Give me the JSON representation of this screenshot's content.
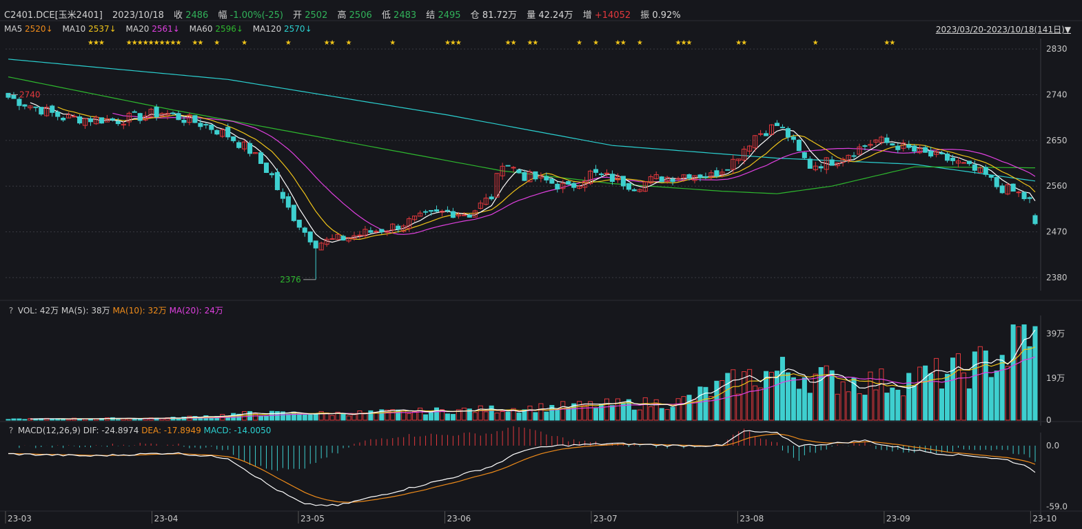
{
  "header": {
    "symbol": "C2401.DCE[玉米2401]",
    "date": "2023/10/18",
    "close_label": "收",
    "close": "2486",
    "change_label": "幅",
    "change": "-1.00%(-25)",
    "open_label": "开",
    "open": "2502",
    "high_label": "高",
    "high": "2506",
    "low_label": "低",
    "low": "2483",
    "settle_label": "结",
    "settle": "2495",
    "oi_label": "仓",
    "oi": "81.72万",
    "vol_label": "量",
    "vol": "42.24万",
    "inc_label": "增",
    "inc": "+14052",
    "amp_label": "振",
    "amp": "0.92%"
  },
  "ma_legend": {
    "ma5_label": "MA5",
    "ma5": "2520↓",
    "ma10_label": "MA10",
    "ma10": "2537↓",
    "ma20_label": "MA20",
    "ma20": "2561↓",
    "ma60_label": "MA60",
    "ma60": "2596↓",
    "ma120_label": "MA120",
    "ma120": "2570↓",
    "range": "2023/03/20-2023/10/18(141日)",
    "range_arrow": "▼"
  },
  "vol_legend": {
    "q": "?",
    "vol": "VOL: 42万",
    "ma5": "MA(5): 38万",
    "ma10": "MA(10): 32万",
    "ma20": "MA(20): 24万"
  },
  "macd_legend": {
    "q": "?",
    "name": "MACD(12,26,9)",
    "dif": "DIF: -24.8974",
    "dea": "DEA: -17.8949",
    "macd": "MACD: -14.0050"
  },
  "colors": {
    "up": "#e3383d",
    "down": "#3ecfcf",
    "ma5": "#ffffff",
    "ma10": "#f0c419",
    "ma20": "#e040e0",
    "ma60": "#2eb82e",
    "ma120": "#2bd0d0",
    "dea": "#f08c1a"
  },
  "chart_data": {
    "type": "candlestick",
    "price_axis": {
      "ticks": [
        "2830",
        "2740",
        "2650",
        "2560",
        "2470",
        "2380"
      ],
      "ylim": [
        2365,
        2845
      ]
    },
    "volume_axis": {
      "ticks": [
        "39万",
        "19万",
        "0"
      ]
    },
    "macd_axis": {
      "ticks": [
        "0.0",
        "-59.0"
      ]
    },
    "x_ticks": [
      "23-03",
      "23-04",
      "23-05",
      "23-06",
      "23-07",
      "23-08",
      "23-09",
      "23-10"
    ],
    "annotations": {
      "high": "2740",
      "low": "2376"
    },
    "last_bar": {
      "date": "2023/10/18",
      "open": 2502,
      "high": 2506,
      "low": 2483,
      "close": 2486
    },
    "price_anchors": [
      [
        0,
        2735
      ],
      [
        10,
        2695
      ],
      [
        20,
        2690
      ],
      [
        28,
        2705
      ],
      [
        36,
        2680
      ],
      [
        40,
        2660
      ],
      [
        44,
        2630
      ],
      [
        48,
        2580
      ],
      [
        50,
        2530
      ],
      [
        52,
        2500
      ],
      [
        54,
        2470
      ],
      [
        56,
        2448
      ],
      [
        60,
        2455
      ],
      [
        66,
        2470
      ],
      [
        70,
        2480
      ],
      [
        76,
        2500
      ],
      [
        80,
        2510
      ],
      [
        84,
        2505
      ],
      [
        88,
        2540
      ],
      [
        90,
        2610
      ],
      [
        94,
        2580
      ],
      [
        98,
        2570
      ],
      [
        102,
        2555
      ],
      [
        106,
        2585
      ],
      [
        110,
        2575
      ],
      [
        114,
        2560
      ],
      [
        118,
        2575
      ],
      [
        122,
        2580
      ],
      [
        124,
        2585
      ],
      [
        128,
        2580
      ],
      [
        132,
        2610
      ],
      [
        136,
        2660
      ],
      [
        140,
        2680
      ],
      [
        142,
        2660
      ],
      [
        144,
        2625
      ],
      [
        146,
        2600
      ],
      [
        150,
        2610
      ],
      [
        154,
        2630
      ],
      [
        158,
        2650
      ],
      [
        162,
        2640
      ],
      [
        166,
        2625
      ],
      [
        170,
        2615
      ],
      [
        172,
        2610
      ],
      [
        174,
        2600
      ],
      [
        176,
        2590
      ],
      [
        178,
        2580
      ],
      [
        180,
        2560
      ],
      [
        184,
        2545
      ],
      [
        186,
        2530
      ],
      [
        187,
        2495
      ]
    ],
    "ma60_anchors": [
      [
        0,
        2775
      ],
      [
        30,
        2710
      ],
      [
        70,
        2630
      ],
      [
        90,
        2590
      ],
      [
        110,
        2565
      ],
      [
        130,
        2550
      ],
      [
        140,
        2545
      ],
      [
        150,
        2560
      ],
      [
        165,
        2598
      ],
      [
        187,
        2596
      ]
    ],
    "ma120_anchors": [
      [
        0,
        2810
      ],
      [
        40,
        2770
      ],
      [
        80,
        2700
      ],
      [
        110,
        2640
      ],
      [
        140,
        2615
      ],
      [
        165,
        2603
      ],
      [
        187,
        2570
      ]
    ],
    "volume_anchors": [
      [
        0,
        0.5
      ],
      [
        30,
        1
      ],
      [
        44,
        3
      ],
      [
        60,
        3
      ],
      [
        76,
        4
      ],
      [
        90,
        5
      ],
      [
        100,
        6
      ],
      [
        110,
        7
      ],
      [
        122,
        8
      ],
      [
        130,
        15
      ],
      [
        136,
        20
      ],
      [
        142,
        22
      ],
      [
        150,
        18
      ],
      [
        160,
        17
      ],
      [
        168,
        20
      ],
      [
        174,
        22
      ],
      [
        178,
        26
      ],
      [
        182,
        30
      ],
      [
        186,
        42
      ],
      [
        187,
        42
      ]
    ],
    "macd_anchors": [
      [
        0,
        -8
      ],
      [
        15,
        -10
      ],
      [
        30,
        -7
      ],
      [
        40,
        -12
      ],
      [
        48,
        -40
      ],
      [
        54,
        -57
      ],
      [
        60,
        -58
      ],
      [
        70,
        -45
      ],
      [
        80,
        -32
      ],
      [
        88,
        -20
      ],
      [
        94,
        -4
      ],
      [
        100,
        0
      ],
      [
        110,
        2
      ],
      [
        122,
        0
      ],
      [
        130,
        0
      ],
      [
        134,
        14
      ],
      [
        140,
        12
      ],
      [
        144,
        0
      ],
      [
        150,
        2
      ],
      [
        156,
        5
      ],
      [
        160,
        0
      ],
      [
        166,
        -5
      ],
      [
        170,
        -8
      ],
      [
        176,
        -10
      ],
      [
        182,
        -14
      ],
      [
        186,
        -21
      ],
      [
        187,
        -25
      ]
    ],
    "star_positions": [
      15,
      16,
      17,
      22,
      23,
      24,
      25,
      26,
      27,
      28,
      29,
      30,
      31,
      34,
      35,
      38,
      43,
      51,
      58,
      59,
      62,
      70,
      80,
      81,
      82,
      91,
      92,
      95,
      96,
      104,
      107,
      111,
      112,
      115,
      122,
      123,
      124,
      133,
      134,
      147,
      160,
      161
    ]
  }
}
